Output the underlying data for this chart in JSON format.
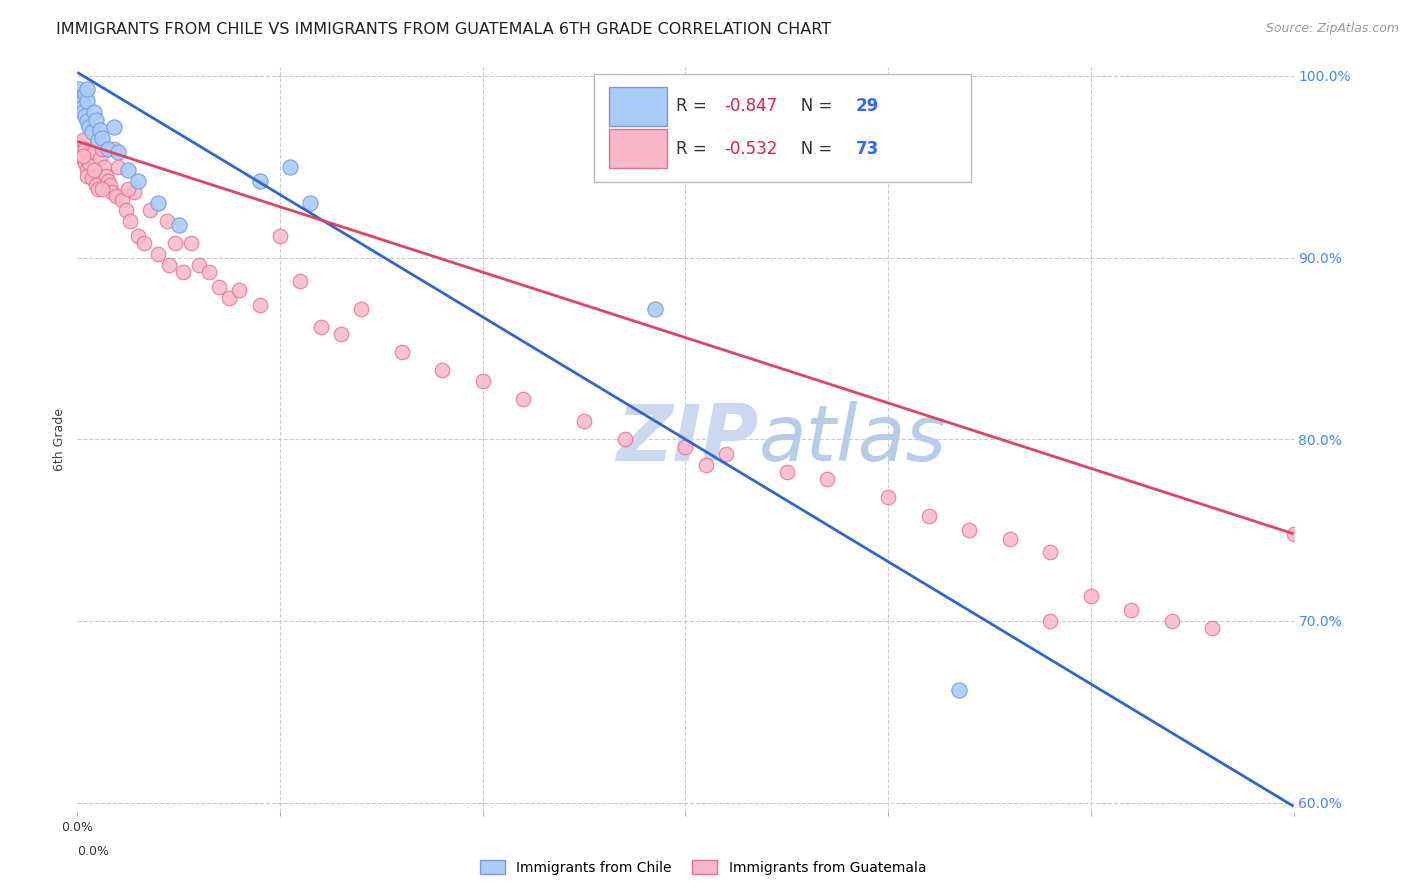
{
  "title": "IMMIGRANTS FROM CHILE VS IMMIGRANTS FROM GUATEMALA 6TH GRADE CORRELATION CHART",
  "source": "Source: ZipAtlas.com",
  "ylabel": "6th Grade",
  "xlim": [
    0.0,
    0.6
  ],
  "ylim": [
    0.595,
    1.005
  ],
  "y_ticks": [
    0.6,
    0.7,
    0.8,
    0.9,
    1.0
  ],
  "y_tick_labels_right": [
    "60.0%",
    "70.0%",
    "80.0%",
    "90.0%",
    "100.0%"
  ],
  "grid_color": "#cccccc",
  "background_color": "#ffffff",
  "chile_color": "#aaccf8",
  "chile_edge_color": "#7799dd",
  "guatemala_color": "#f8b8c8",
  "guatemala_edge_color": "#e87090",
  "chile_line_color": "#3366cc",
  "guatemala_line_color": "#dd4466",
  "R_chile": -0.847,
  "N_chile": 29,
  "R_guatemala": -0.532,
  "N_guatemala": 73,
  "legend_R_color": "#dd2244",
  "title_fontsize": 11.5,
  "axis_label_fontsize": 9,
  "tick_fontsize": 9,
  "source_fontsize": 9,
  "watermark_color": "#ccd8ee",
  "chile_trendline_y0": 1.002,
  "chile_trendline_y1": 0.598,
  "guatemala_trendline_y0": 0.964,
  "guatemala_trendline_y1": 0.748,
  "chile_scatter_x": [
    0.001,
    0.002,
    0.002,
    0.003,
    0.003,
    0.004,
    0.004,
    0.005,
    0.005,
    0.006,
    0.007,
    0.008,
    0.009,
    0.01,
    0.011,
    0.012,
    0.015,
    0.018,
    0.02,
    0.025,
    0.03,
    0.04,
    0.05,
    0.09,
    0.105,
    0.115,
    0.285,
    0.435,
    0.005
  ],
  "chile_scatter_y": [
    0.993,
    0.988,
    0.985,
    0.983,
    0.98,
    0.978,
    0.99,
    0.986,
    0.975,
    0.972,
    0.969,
    0.98,
    0.976,
    0.965,
    0.97,
    0.966,
    0.96,
    0.972,
    0.958,
    0.948,
    0.942,
    0.93,
    0.918,
    0.942,
    0.95,
    0.93,
    0.872,
    0.662,
    0.993
  ],
  "guatemala_scatter_x": [
    0.001,
    0.002,
    0.003,
    0.003,
    0.004,
    0.004,
    0.005,
    0.005,
    0.006,
    0.007,
    0.008,
    0.009,
    0.01,
    0.011,
    0.012,
    0.013,
    0.014,
    0.015,
    0.016,
    0.017,
    0.018,
    0.019,
    0.02,
    0.022,
    0.024,
    0.026,
    0.028,
    0.03,
    0.033,
    0.036,
    0.04,
    0.044,
    0.048,
    0.052,
    0.056,
    0.06,
    0.065,
    0.07,
    0.075,
    0.08,
    0.09,
    0.1,
    0.11,
    0.12,
    0.13,
    0.14,
    0.16,
    0.18,
    0.2,
    0.22,
    0.25,
    0.27,
    0.3,
    0.32,
    0.35,
    0.37,
    0.4,
    0.42,
    0.44,
    0.46,
    0.48,
    0.5,
    0.52,
    0.54,
    0.56,
    0.6,
    0.003,
    0.008,
    0.012,
    0.025,
    0.045,
    0.31,
    0.48
  ],
  "guatemala_scatter_y": [
    0.962,
    0.958,
    0.965,
    0.955,
    0.96,
    0.952,
    0.948,
    0.945,
    0.952,
    0.944,
    0.958,
    0.94,
    0.938,
    0.955,
    0.96,
    0.95,
    0.945,
    0.942,
    0.94,
    0.936,
    0.96,
    0.934,
    0.95,
    0.932,
    0.926,
    0.92,
    0.936,
    0.912,
    0.908,
    0.926,
    0.902,
    0.92,
    0.908,
    0.892,
    0.908,
    0.896,
    0.892,
    0.884,
    0.878,
    0.882,
    0.874,
    0.912,
    0.887,
    0.862,
    0.858,
    0.872,
    0.848,
    0.838,
    0.832,
    0.822,
    0.81,
    0.8,
    0.796,
    0.792,
    0.782,
    0.778,
    0.768,
    0.758,
    0.75,
    0.745,
    0.738,
    0.714,
    0.706,
    0.7,
    0.696,
    0.748,
    0.956,
    0.948,
    0.938,
    0.938,
    0.896,
    0.786,
    0.7
  ]
}
